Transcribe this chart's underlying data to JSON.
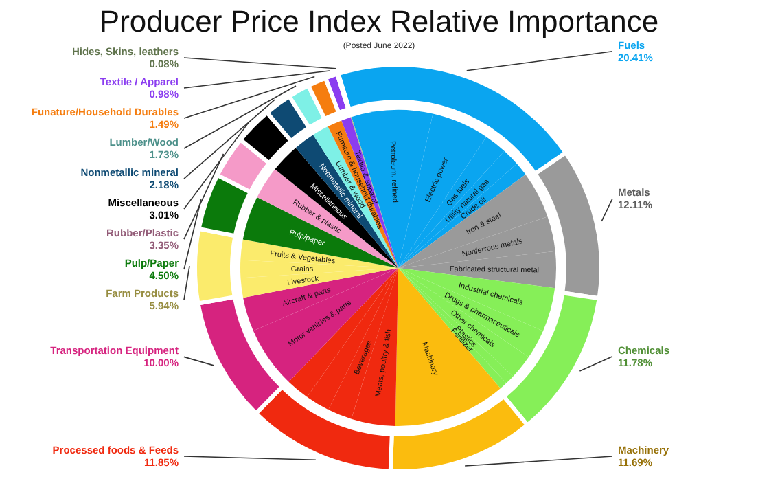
{
  "chart_data": [
    {
      "type": "donut",
      "title": "Producer Price Index Relative Importance",
      "subtitle": "(Posted June 2022)",
      "categories": [
        "Fuels",
        "Metals",
        "Chemicals",
        "Machinery",
        "Processed foods & Feeds",
        "Transportation Equipment",
        "Farm Products",
        "Pulp/Paper",
        "Rubber/Plastic",
        "Miscellaneous",
        "Nonmetallic mineral",
        "Lumber/Wood",
        "Funature/Household Durables",
        "Textile / Apparel",
        "Hides, Skins, leathers"
      ],
      "values": [
        20.41,
        12.11,
        11.78,
        11.69,
        11.85,
        10.0,
        5.94,
        4.5,
        3.35,
        3.01,
        2.18,
        1.73,
        1.49,
        0.98,
        0.08
      ],
      "value_labels": [
        "20.41%",
        "12.11%",
        "11.78%",
        "11.69%",
        "11.85%",
        "10.00%",
        "5.94%",
        "4.50%",
        "3.35%",
        "3.01%",
        "2.18%",
        "1.73%",
        "1.49%",
        "0.98%",
        "0.08%"
      ],
      "colors": [
        "#0aa5f0",
        "#9a9a9a",
        "#86ef58",
        "#fbbc0e",
        "#f0290f",
        "#d6237f",
        "#fbeb6c",
        "#0b7a0b",
        "#f59ac8",
        "#000000",
        "#0e4a73",
        "#7ef0e6",
        "#f57d0f",
        "#8b3df0",
        "#9fbf7f"
      ]
    },
    {
      "type": "pie",
      "categories": [
        "Petroleum, refined",
        "Electric power",
        "Gas fuels",
        "Utility natural gas",
        "Crude oil",
        "Iron & steel",
        "Nonferrous metals",
        "Fabricated structural metal",
        "Industrial chemicals",
        "Drugs & pharmaceuticals",
        "Other chemicals",
        "Plastics",
        "Fertilizer",
        "Machinery",
        "Meats, poultry & fish",
        "Beverages",
        null,
        null,
        "Motor vehicles & parts",
        "Aircraft & parts",
        "Livestock",
        "Grains",
        "Fruits & Vegetables",
        "Pulp/paper",
        "Rubber & plastic",
        "Miscellaneous",
        "Nonmetallic mineral",
        "Lumber & wood",
        "Furniture & household durables",
        "Textile & apparel",
        null
      ],
      "values": [
        8.3,
        5.9,
        2.3,
        1.8,
        1.4,
        4.8,
        3.6,
        3.7,
        4.5,
        3.0,
        2.5,
        0.97,
        0.8,
        11.5,
        4.5,
        2.5,
        2.5,
        2.4,
        6.3,
        3.5,
        2.0,
        1.8,
        2.1,
        4.5,
        3.35,
        3.0,
        2.2,
        1.7,
        1.5,
        1.0,
        0.08
      ],
      "colors": [
        "#0aa5f0",
        "#0aa5f0",
        "#0aa5f0",
        "#0aa5f0",
        "#0aa5f0",
        "#9a9a9a",
        "#9a9a9a",
        "#9a9a9a",
        "#86ef58",
        "#86ef58",
        "#86ef58",
        "#86ef58",
        "#86ef58",
        "#fbbc0e",
        "#f0290f",
        "#f0290f",
        "#f0290f",
        "#f0290f",
        "#d6237f",
        "#d6237f",
        "#fbeb6c",
        "#fbeb6c",
        "#fbeb6c",
        "#0b7a0b",
        "#f59ac8",
        "#000000",
        "#0e4a73",
        "#7ef0e6",
        "#f57d0f",
        "#8b3df0",
        "#9fbf7f"
      ]
    }
  ]
}
